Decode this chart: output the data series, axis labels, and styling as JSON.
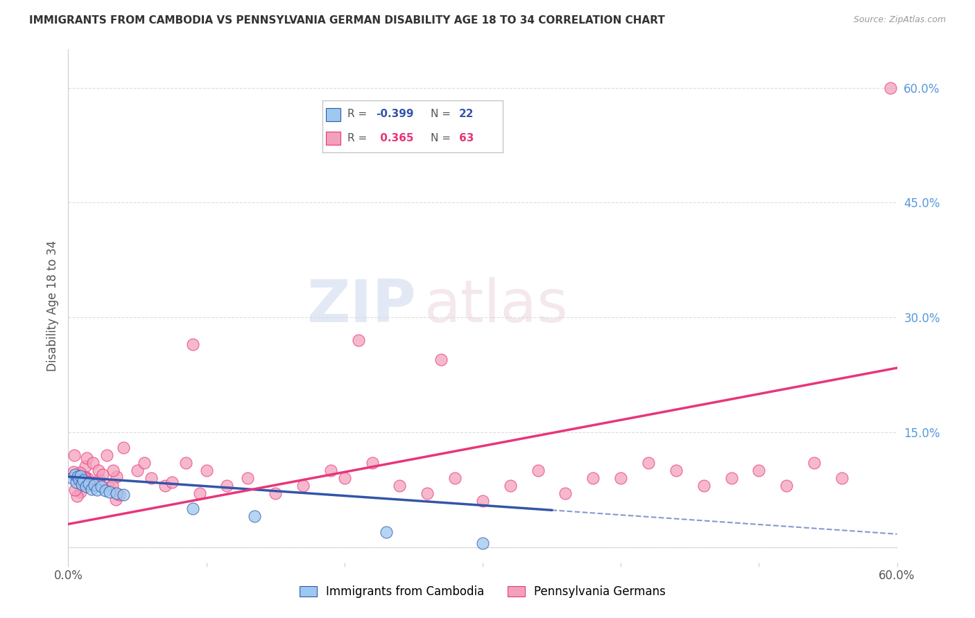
{
  "title": "IMMIGRANTS FROM CAMBODIA VS PENNSYLVANIA GERMAN DISABILITY AGE 18 TO 34 CORRELATION CHART",
  "source": "Source: ZipAtlas.com",
  "ylabel": "Disability Age 18 to 34",
  "xlim": [
    0.0,
    0.6
  ],
  "ylim": [
    -0.02,
    0.65
  ],
  "ytick_labels_right": [
    "60.0%",
    "45.0%",
    "30.0%",
    "15.0%"
  ],
  "ytick_vals_right": [
    0.6,
    0.45,
    0.3,
    0.15
  ],
  "watermark_zip": "ZIP",
  "watermark_atlas": "atlas",
  "series1_color": "#9DC8EF",
  "series2_color": "#F4A0BC",
  "series1_label": "Immigrants from Cambodia",
  "series2_label": "Pennsylvania Germans",
  "trend1_color": "#3355AA",
  "trend2_color": "#E8357A",
  "background_color": "#FFFFFF",
  "legend_box_color": "#DDDDDD",
  "grid_color": "#DDDDDD",
  "right_tick_color": "#5599DD"
}
